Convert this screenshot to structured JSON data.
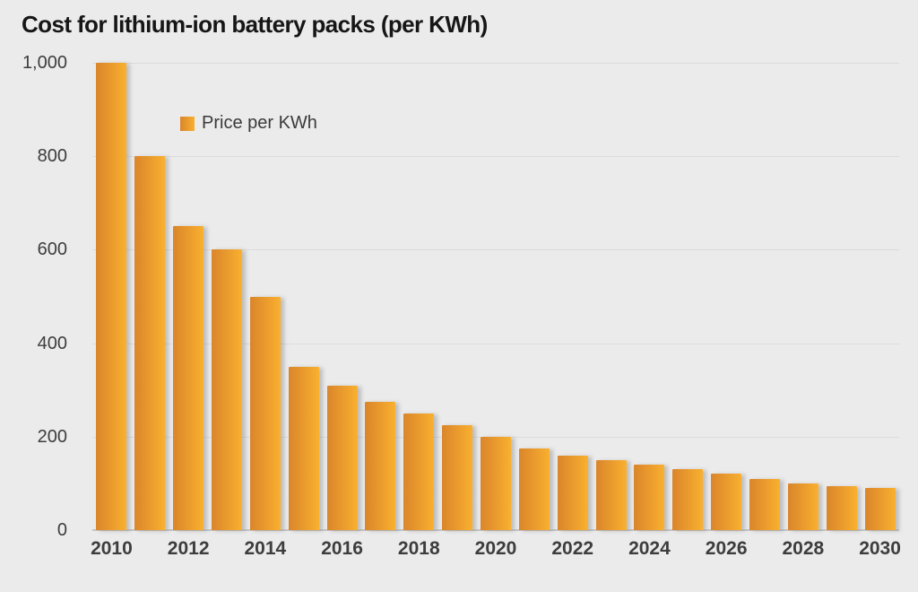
{
  "title": "Cost for lithium-ion battery packs (per KWh)",
  "legend": {
    "label": "Price per KWh"
  },
  "colors": {
    "background": "#EBEBEB",
    "bar_gradient_left": "#DA852B",
    "bar_gradient_right": "#F9B02F",
    "gridline": "#DBDBDB",
    "baseline": "#C5C5C5",
    "title_text": "#161616",
    "axis_text": "#3D3D3D"
  },
  "chart_data": {
    "type": "bar",
    "title": "Cost for lithium-ion battery packs (per KWh)",
    "xlabel": "",
    "ylabel": "",
    "series_name": "Price per KWh",
    "categories": [
      "2010",
      "2011",
      "2012",
      "2013",
      "2014",
      "2015",
      "2016",
      "2017",
      "2018",
      "2019",
      "2020",
      "2021",
      "2022",
      "2023",
      "2024",
      "2025",
      "2026",
      "2027",
      "2028",
      "2029",
      "2030"
    ],
    "values": [
      1000,
      800,
      650,
      600,
      500,
      350,
      310,
      275,
      250,
      225,
      200,
      175,
      160,
      150,
      140,
      130,
      120,
      110,
      100,
      95,
      90
    ],
    "ylim": [
      0,
      1000
    ],
    "yticks": [
      0,
      200,
      400,
      600,
      800,
      1000
    ],
    "ytick_labels": [
      "0",
      "200",
      "400",
      "600",
      "800",
      "1,000"
    ],
    "xtick_shown_labels": [
      "2010",
      "2012",
      "2014",
      "2016",
      "2018",
      "2020",
      "2022",
      "2024",
      "2026",
      "2028",
      "2030"
    ],
    "xtick_every": 2,
    "grid": true,
    "legend_position": "inside-top-left"
  }
}
